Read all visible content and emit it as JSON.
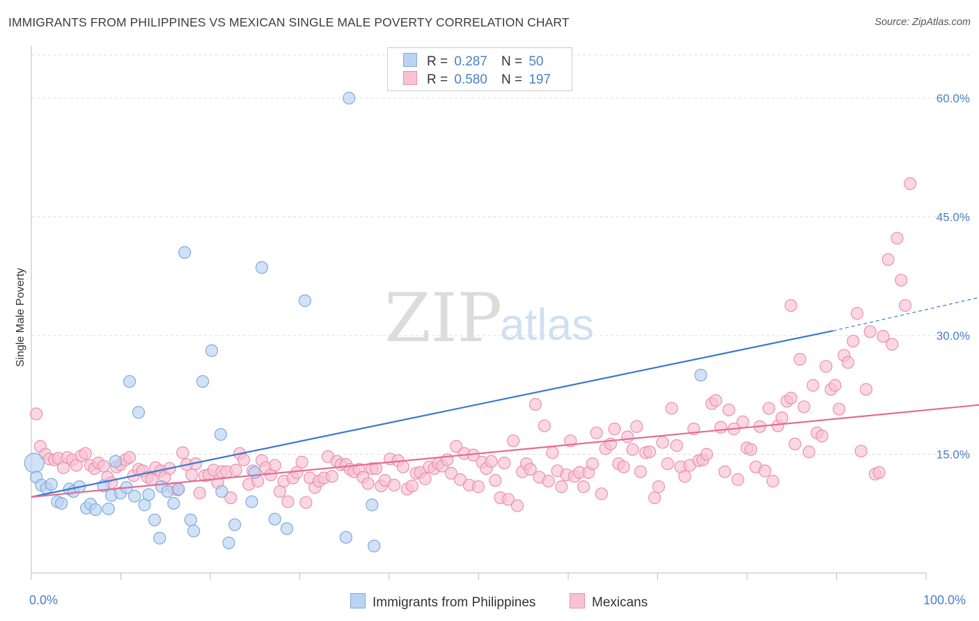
{
  "title": "IMMIGRANTS FROM PHILIPPINES VS MEXICAN SINGLE MALE POVERTY CORRELATION CHART",
  "source": "Source: ZipAtlas.com",
  "watermark": {
    "part1": "ZIP",
    "part2": "atlas"
  },
  "legend": {
    "r_label": "R =",
    "n_label": "N =",
    "series": [
      {
        "r": "0.287",
        "n": "50"
      },
      {
        "r": "0.580",
        "n": "197"
      }
    ]
  },
  "bottom_legend": [
    "Immigrants from Philippines",
    "Mexicans"
  ],
  "x_axis": {
    "min_label": "0.0%",
    "max_label": "100.0%"
  },
  "colors": {
    "blue_fill": "#b9d3f2",
    "blue_stroke": "#7fa9dc",
    "blue_line": "#3a78cf",
    "pink_fill": "#f8c2d2",
    "pink_stroke": "#ec8fab",
    "pink_line": "#e56b93",
    "tick_text": "#4a7fc8",
    "grid": "#dddddd"
  },
  "chart_data": {
    "type": "scatter",
    "ylabel": "Single Male Poverty",
    "xlim": [
      0,
      100
    ],
    "ylim": [
      0,
      65
    ],
    "y_ticks": [
      15,
      30,
      45,
      60
    ],
    "y_tick_labels": [
      "15.0%",
      "30.0%",
      "45.0%",
      "60.0%"
    ],
    "x_tick_labels": [
      "0.0%",
      "100.0%"
    ],
    "grid": true,
    "series": [
      {
        "name": "Immigrants from Philippines",
        "color": "#b9d3f2",
        "trend": {
          "x0": 0,
          "y0": 9.6,
          "x1": 80,
          "y1": 30.6,
          "dashed_to_x": 98,
          "dashed_to_y": 35.8
        },
        "points": [
          [
            0.3,
            13.9
          ],
          [
            0.5,
            12.1
          ],
          [
            1,
            11.1
          ],
          [
            1.5,
            10.7
          ],
          [
            2,
            11.2
          ],
          [
            2.6,
            9
          ],
          [
            3,
            8.8
          ],
          [
            3.8,
            10.6
          ],
          [
            4.2,
            10.3
          ],
          [
            4.8,
            10.9
          ],
          [
            5.5,
            8.2
          ],
          [
            5.9,
            8.7
          ],
          [
            6.4,
            8
          ],
          [
            7.2,
            11
          ],
          [
            7.7,
            8.1
          ],
          [
            8,
            9.8
          ],
          [
            8.4,
            14.1
          ],
          [
            8.9,
            10.1
          ],
          [
            9.5,
            10.8
          ],
          [
            9.8,
            24.2
          ],
          [
            10.3,
            9.7
          ],
          [
            10.7,
            20.3
          ],
          [
            11.3,
            8.6
          ],
          [
            11.7,
            9.9
          ],
          [
            12.3,
            6.7
          ],
          [
            12.8,
            4.4
          ],
          [
            13,
            10.9
          ],
          [
            13.6,
            10.3
          ],
          [
            14.2,
            8.8
          ],
          [
            14.7,
            10.6
          ],
          [
            15.3,
            40.5
          ],
          [
            15.9,
            6.7
          ],
          [
            16.2,
            5.3
          ],
          [
            17.1,
            24.2
          ],
          [
            18,
            28.1
          ],
          [
            18.9,
            17.5
          ],
          [
            19,
            10.3
          ],
          [
            19.7,
            3.8
          ],
          [
            20.3,
            6.1
          ],
          [
            22,
            9
          ],
          [
            22.3,
            12.7
          ],
          [
            23,
            38.6
          ],
          [
            24.3,
            6.8
          ],
          [
            25.5,
            5.6
          ],
          [
            27.3,
            34.4
          ],
          [
            31.4,
            4.5
          ],
          [
            31.7,
            60
          ],
          [
            34,
            8.6
          ],
          [
            34.2,
            3.4
          ],
          [
            66.8,
            25
          ]
        ]
      },
      {
        "name": "Mexicans",
        "color": "#f8c2d2",
        "trend": {
          "x0": 0,
          "y0": 9.6,
          "x1": 100,
          "y1": 21.9
        },
        "points": [
          [
            0.5,
            20.1
          ],
          [
            0.9,
            16
          ],
          [
            1.4,
            15
          ],
          [
            1.8,
            14.4
          ],
          [
            2.3,
            14.3
          ],
          [
            2.7,
            14.5
          ],
          [
            3.2,
            13.3
          ],
          [
            3.6,
            14.6
          ],
          [
            4.1,
            14.3
          ],
          [
            4.5,
            13.6
          ],
          [
            5,
            14.8
          ],
          [
            5.4,
            15.1
          ],
          [
            5.9,
            13.6
          ],
          [
            6.3,
            13.2
          ],
          [
            6.7,
            13.9
          ],
          [
            7.2,
            13.5
          ],
          [
            7.6,
            12.1
          ],
          [
            8,
            11.4
          ],
          [
            8.5,
            13.4
          ],
          [
            8.9,
            13.7
          ],
          [
            9.4,
            14.3
          ],
          [
            9.8,
            14.6
          ],
          [
            10.2,
            12.3
          ],
          [
            10.7,
            13.1
          ],
          [
            11.1,
            12.9
          ],
          [
            11.6,
            12.1
          ],
          [
            12,
            11.8
          ],
          [
            12.4,
            13.3
          ],
          [
            12.9,
            12.9
          ],
          [
            13.3,
            12.1
          ],
          [
            13.8,
            13.2
          ],
          [
            14.2,
            10.7
          ],
          [
            14.6,
            10.5
          ],
          [
            15.1,
            15.2
          ],
          [
            15.5,
            13.7
          ],
          [
            16,
            12.4
          ],
          [
            16.4,
            13.8
          ],
          [
            16.8,
            10.1
          ],
          [
            17.3,
            12.3
          ],
          [
            17.7,
            12.4
          ],
          [
            18.2,
            13
          ],
          [
            18.6,
            11.4
          ],
          [
            19,
            12.8
          ],
          [
            19.5,
            12.8
          ],
          [
            19.9,
            9.5
          ],
          [
            20.4,
            13
          ],
          [
            20.8,
            15.1
          ],
          [
            21.2,
            14.3
          ],
          [
            21.7,
            11.2
          ],
          [
            22.1,
            12.9
          ],
          [
            22.6,
            11.6
          ],
          [
            23,
            14.2
          ],
          [
            23.4,
            13.3
          ],
          [
            23.9,
            12.4
          ],
          [
            24.3,
            13.6
          ],
          [
            24.8,
            10.3
          ],
          [
            25.2,
            11.6
          ],
          [
            25.6,
            9
          ],
          [
            26.1,
            12
          ],
          [
            26.5,
            12.7
          ],
          [
            27,
            14
          ],
          [
            27.4,
            8.9
          ],
          [
            27.8,
            12
          ],
          [
            28.3,
            10.8
          ],
          [
            28.7,
            11.6
          ],
          [
            29.2,
            12
          ],
          [
            29.6,
            14.7
          ],
          [
            30,
            12.2
          ],
          [
            30.5,
            14.1
          ],
          [
            30.9,
            13.7
          ],
          [
            31.4,
            13.7
          ],
          [
            31.8,
            13.1
          ],
          [
            32.2,
            12.8
          ],
          [
            32.7,
            13.1
          ],
          [
            33.1,
            12.1
          ],
          [
            33.6,
            11.3
          ],
          [
            34,
            13.2
          ],
          [
            34.4,
            13.2
          ],
          [
            34.9,
            11
          ],
          [
            35.3,
            11.7
          ],
          [
            35.8,
            14.4
          ],
          [
            36.2,
            11.1
          ],
          [
            36.6,
            14.2
          ],
          [
            37.1,
            13.4
          ],
          [
            37.5,
            10.6
          ],
          [
            38,
            11
          ],
          [
            38.4,
            12.6
          ],
          [
            38.8,
            12.7
          ],
          [
            39.3,
            11.9
          ],
          [
            39.7,
            13.4
          ],
          [
            40.2,
            13.2
          ],
          [
            40.6,
            13.8
          ],
          [
            41,
            13.5
          ],
          [
            41.5,
            14.3
          ],
          [
            41.9,
            12.6
          ],
          [
            42.4,
            16
          ],
          [
            42.8,
            11.8
          ],
          [
            43.2,
            15.1
          ],
          [
            43.7,
            11.1
          ],
          [
            44.1,
            14.9
          ],
          [
            44.6,
            10.9
          ],
          [
            45,
            14
          ],
          [
            45.4,
            13.2
          ],
          [
            45.9,
            14.1
          ],
          [
            46.3,
            11.7
          ],
          [
            46.8,
            9.5
          ],
          [
            47.2,
            13.9
          ],
          [
            47.6,
            9.3
          ],
          [
            48.1,
            16.7
          ],
          [
            48.5,
            8.5
          ],
          [
            49,
            12.8
          ],
          [
            49.4,
            13.8
          ],
          [
            49.8,
            13.1
          ],
          [
            50.3,
            21.3
          ],
          [
            50.7,
            12.1
          ],
          [
            51.2,
            18.6
          ],
          [
            51.6,
            11.6
          ],
          [
            52,
            15.2
          ],
          [
            52.5,
            12.9
          ],
          [
            52.9,
            10.9
          ],
          [
            53.4,
            12.4
          ],
          [
            53.8,
            16.7
          ],
          [
            54.2,
            12.2
          ],
          [
            54.7,
            12.7
          ],
          [
            55.1,
            10.9
          ],
          [
            55.6,
            12.7
          ],
          [
            56,
            13.8
          ],
          [
            56.4,
            17.7
          ],
          [
            56.9,
            10
          ],
          [
            57.3,
            15.7
          ],
          [
            57.8,
            16.3
          ],
          [
            58.2,
            18.2
          ],
          [
            58.6,
            13.8
          ],
          [
            59.1,
            13.4
          ],
          [
            59.5,
            17.2
          ],
          [
            60,
            15.6
          ],
          [
            60.4,
            18.5
          ],
          [
            60.8,
            12.8
          ],
          [
            61.3,
            15.2
          ],
          [
            61.7,
            15.3
          ],
          [
            62.2,
            9.5
          ],
          [
            62.6,
            10.9
          ],
          [
            63,
            16.5
          ],
          [
            63.5,
            13.8
          ],
          [
            63.9,
            20.8
          ],
          [
            64.4,
            16.1
          ],
          [
            64.8,
            13.4
          ],
          [
            65.2,
            12.2
          ],
          [
            65.7,
            13.6
          ],
          [
            66.1,
            18.2
          ],
          [
            66.6,
            14.2
          ],
          [
            67,
            14.3
          ],
          [
            67.4,
            15
          ],
          [
            67.9,
            21.4
          ],
          [
            68.3,
            21.8
          ],
          [
            68.8,
            18.4
          ],
          [
            69.2,
            12.8
          ],
          [
            69.6,
            20.6
          ],
          [
            70.1,
            18.2
          ],
          [
            70.5,
            11.8
          ],
          [
            71,
            19.1
          ],
          [
            71.4,
            15.8
          ],
          [
            71.8,
            15.6
          ],
          [
            72.3,
            13.4
          ],
          [
            72.7,
            18.5
          ],
          [
            73.2,
            12.9
          ],
          [
            73.6,
            20.8
          ],
          [
            74,
            11.6
          ],
          [
            74.5,
            18.6
          ],
          [
            74.9,
            19.6
          ],
          [
            75.4,
            21.7
          ],
          [
            75.8,
            22.1
          ],
          [
            76.2,
            16.3
          ],
          [
            76.7,
            27
          ],
          [
            77.1,
            21
          ],
          [
            77.6,
            15.3
          ],
          [
            78,
            23.7
          ],
          [
            78.4,
            17.7
          ],
          [
            78.9,
            17.3
          ],
          [
            79.3,
            26.1
          ],
          [
            79.8,
            23.2
          ],
          [
            80.2,
            23.7
          ],
          [
            80.6,
            20.7
          ],
          [
            81.1,
            27.5
          ],
          [
            81.5,
            26.6
          ],
          [
            82,
            29.3
          ],
          [
            82.4,
            32.8
          ],
          [
            82.8,
            15.4
          ],
          [
            83.3,
            23.2
          ],
          [
            83.7,
            30.5
          ],
          [
            84.2,
            12.5
          ],
          [
            84.6,
            12.7
          ],
          [
            85,
            29.9
          ],
          [
            85.5,
            39.6
          ],
          [
            85.9,
            28.9
          ],
          [
            86.4,
            42.3
          ],
          [
            86.8,
            37
          ],
          [
            87.2,
            33.8
          ],
          [
            87.7,
            49.2
          ],
          [
            75.8,
            33.8
          ]
        ]
      }
    ]
  }
}
